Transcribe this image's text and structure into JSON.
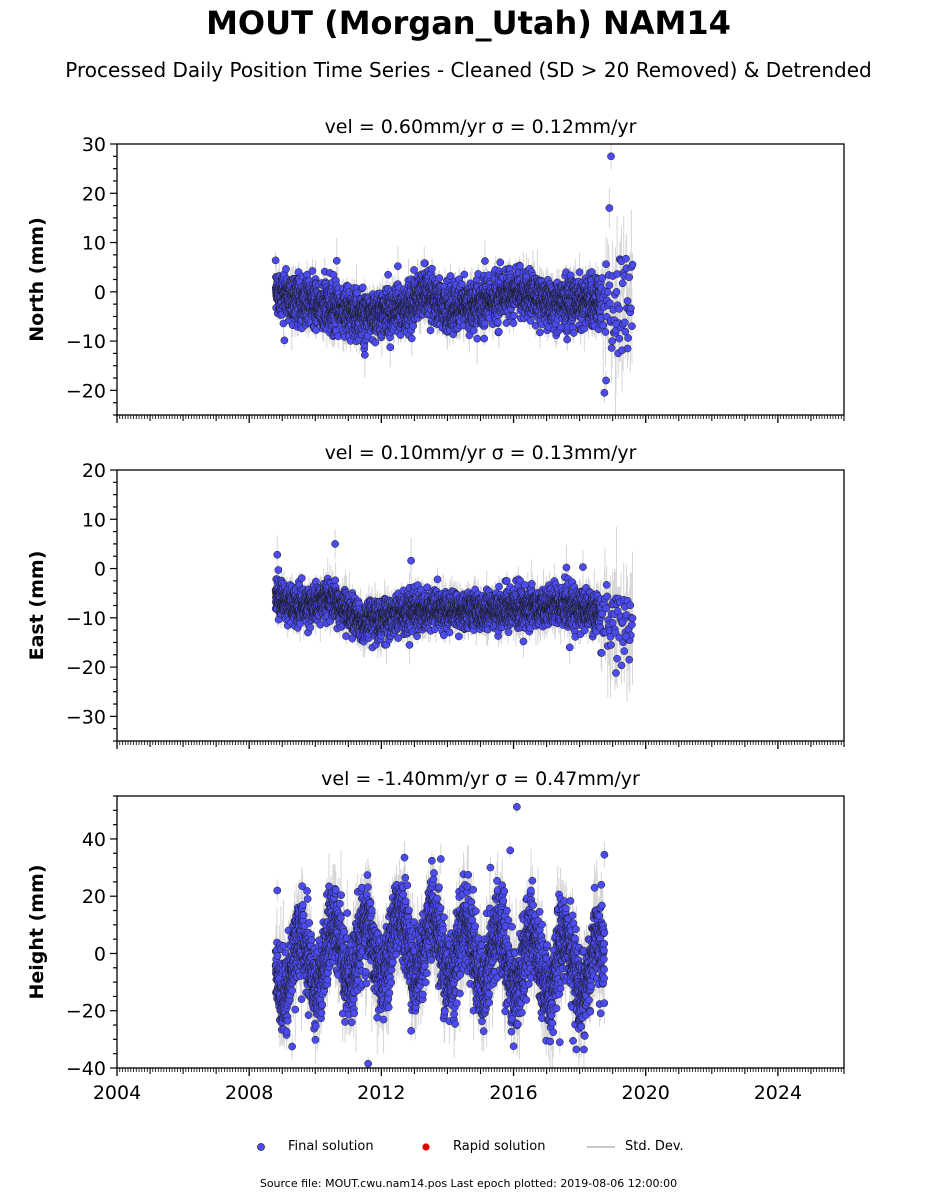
{
  "header": {
    "title": "MOUT (Morgan_Utah) NAM14",
    "subtitle": "Processed Daily Position Time Series - Cleaned (SD > 20 Removed) & Detrended"
  },
  "legend": {
    "final": "Final solution",
    "rapid": "Rapid solution",
    "stddev": "Std. Dev."
  },
  "footer": {
    "text": "Source file: MOUT.cwu.nam14.pos  Last epoch plotted: 2019-08-06 12:00:00"
  },
  "colors": {
    "final": "#4b4bf0",
    "final_edge": "#1a1a1a",
    "rapid": "#e00000",
    "stddev": "#b4b4b4"
  },
  "chart_data": [
    {
      "type": "scatter",
      "title": "vel = 0.60mm/yr   σ = 0.12mm/yr",
      "ylabel": "North (mm)",
      "xlim": [
        2004,
        2026
      ],
      "ylim": [
        -25,
        30
      ],
      "yticks": [
        -20,
        -10,
        0,
        10,
        20,
        30
      ],
      "xticks": [
        2004,
        2008,
        2012,
        2016,
        2020,
        2024
      ],
      "show_xticklabels": false,
      "span": [
        2008.8,
        2018.65
      ],
      "late_span": [
        2018.65,
        2019.6
      ],
      "noise_sd": 2.3,
      "sigma_sd": 1.6,
      "late_noise_sd": 4.5,
      "late_sigma_sd": 5.5,
      "shifts": [
        [
          2008.8,
          0
        ],
        [
          2009.5,
          -1.5
        ],
        [
          2011.3,
          -4.5
        ],
        [
          2012.8,
          -3.5
        ],
        [
          2013.3,
          0
        ],
        [
          2014.0,
          -3.5
        ],
        [
          2015.2,
          -2.0
        ],
        [
          2016.0,
          0
        ],
        [
          2017.2,
          -2.0
        ],
        [
          2018.6,
          -2.0
        ],
        [
          2019.6,
          -2.0
        ]
      ],
      "outliers": [
        [
          2018.95,
          27.5
        ],
        [
          2018.9,
          17.0
        ],
        [
          2011.5,
          -12.8
        ],
        [
          2018.75,
          -20.5
        ],
        [
          2018.8,
          -18.0
        ],
        [
          2019.45,
          -11.5
        ],
        [
          2013.3,
          5.8
        ],
        [
          2012.5,
          5.2
        ],
        [
          2010.65,
          6.3
        ],
        [
          2014.9,
          -9.5
        ],
        [
          2019.2,
          -9.5
        ],
        [
          2019.1,
          -6.5
        ]
      ]
    },
    {
      "type": "scatter",
      "title": "vel = 0.10mm/yr   σ = 0.13mm/yr",
      "ylabel": "East (mm)",
      "xlim": [
        2004,
        2026
      ],
      "ylim": [
        -35,
        20
      ],
      "yticks": [
        -30,
        -20,
        -10,
        0,
        10,
        20
      ],
      "xticks": [
        2004,
        2008,
        2012,
        2016,
        2020,
        2024
      ],
      "show_xticklabels": false,
      "span": [
        2008.8,
        2018.65
      ],
      "late_span": [
        2018.65,
        2019.6
      ],
      "noise_sd": 1.8,
      "sigma_sd": 1.5,
      "late_noise_sd": 3.5,
      "late_sigma_sd": 5.0,
      "shifts": [
        [
          2008.8,
          -5.5
        ],
        [
          2009.5,
          -8
        ],
        [
          2010.5,
          -6
        ],
        [
          2011.4,
          -11
        ],
        [
          2012.5,
          -9
        ],
        [
          2013.5,
          -8.5
        ],
        [
          2015,
          -8.5
        ],
        [
          2016.5,
          -8
        ],
        [
          2017.5,
          -7.5
        ],
        [
          2018.6,
          -9
        ],
        [
          2019.6,
          -11
        ]
      ],
      "outliers": [
        [
          2008.85,
          2.8
        ],
        [
          2010.6,
          5.0
        ],
        [
          2012.9,
          1.6
        ],
        [
          2019.1,
          -21.2
        ],
        [
          2019.5,
          -18.5
        ],
        [
          2019.4,
          -13.8
        ],
        [
          2016.3,
          -14.8
        ],
        [
          2017.7,
          -16.0
        ],
        [
          2012.85,
          -15.5
        ],
        [
          2013.7,
          -2.2
        ],
        [
          2017.6,
          0.2
        ],
        [
          2018.1,
          0.3
        ]
      ]
    },
    {
      "type": "scatter",
      "title": "vel = -1.40mm/yr   σ = 0.47mm/yr",
      "ylabel": "Height (mm)",
      "xlim": [
        2004,
        2026
      ],
      "ylim": [
        -40,
        55
      ],
      "yticks": [
        -40,
        -20,
        0,
        20,
        40
      ],
      "xticks": [
        2004,
        2008,
        2012,
        2016,
        2020,
        2024
      ],
      "show_xticklabels": true,
      "span": [
        2008.8,
        2018.75
      ],
      "noise_sd": 7.0,
      "sigma_sd": 5.5,
      "annual_amp": 10.0,
      "shifts": [
        [
          2008.8,
          -5
        ],
        [
          2012.5,
          4
        ],
        [
          2014.5,
          1
        ],
        [
          2016.5,
          -3
        ],
        [
          2018.75,
          -5
        ]
      ],
      "outliers": [
        [
          2016.1,
          51.2
        ],
        [
          2018.75,
          34.5
        ],
        [
          2015.9,
          36.0
        ],
        [
          2012.7,
          33.5
        ],
        [
          2013.8,
          33.0
        ],
        [
          2008.85,
          22.0
        ],
        [
          2009.3,
          -32.5
        ],
        [
          2011.6,
          -38.5
        ],
        [
          2017.9,
          -33.5
        ],
        [
          2017.4,
          -31.0
        ],
        [
          2012.9,
          -27.0
        ],
        [
          2015.3,
          30.0
        ],
        [
          2017.8,
          -30.5
        ]
      ]
    }
  ]
}
